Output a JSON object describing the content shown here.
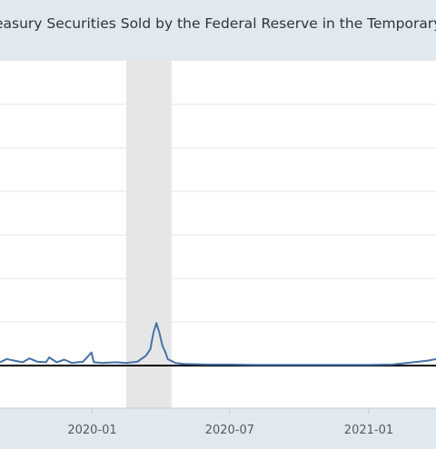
{
  "chart_data": {
    "type": "line",
    "title": "easury Securities Sold by the Federal Reserve in the Temporary",
    "x_tick_labels": [
      "2020-01",
      "2020-07",
      "2021-01"
    ],
    "x_range": [
      "2019-09-01",
      "2021-03-31"
    ],
    "y_range": [
      0,
      8
    ],
    "grid": true,
    "recession_band": [
      "2020-02-15",
      "2020-04-15"
    ],
    "series": [
      {
        "color": "#4572a7",
        "points": [
          [
            "2019-09-01",
            0.1
          ],
          [
            "2019-09-10",
            0.2
          ],
          [
            "2019-09-20",
            0.15
          ],
          [
            "2019-10-01",
            0.1
          ],
          [
            "2019-10-10",
            0.22
          ],
          [
            "2019-10-20",
            0.12
          ],
          [
            "2019-11-01",
            0.1
          ],
          [
            "2019-11-05",
            0.25
          ],
          [
            "2019-11-15",
            0.1
          ],
          [
            "2019-11-25",
            0.18
          ],
          [
            "2019-12-05",
            0.08
          ],
          [
            "2019-12-20",
            0.12
          ],
          [
            "2019-12-31",
            0.4
          ],
          [
            "2020-01-03",
            0.1
          ],
          [
            "2020-01-15",
            0.08
          ],
          [
            "2020-02-01",
            0.1
          ],
          [
            "2020-02-15",
            0.08
          ],
          [
            "2020-03-01",
            0.12
          ],
          [
            "2020-03-12",
            0.3
          ],
          [
            "2020-03-18",
            0.5
          ],
          [
            "2020-03-22",
            1.0
          ],
          [
            "2020-03-26",
            1.3
          ],
          [
            "2020-03-30",
            1.0
          ],
          [
            "2020-04-03",
            0.6
          ],
          [
            "2020-04-07",
            0.4
          ],
          [
            "2020-04-10",
            0.2
          ],
          [
            "2020-04-20",
            0.08
          ],
          [
            "2020-05-01",
            0.05
          ],
          [
            "2020-06-01",
            0.03
          ],
          [
            "2020-07-01",
            0.03
          ],
          [
            "2020-08-01",
            0.02
          ],
          [
            "2020-09-01",
            0.02
          ],
          [
            "2020-10-01",
            0.02
          ],
          [
            "2020-11-01",
            0.02
          ],
          [
            "2020-12-01",
            0.02
          ],
          [
            "2021-01-01",
            0.02
          ],
          [
            "2021-02-01",
            0.03
          ],
          [
            "2021-03-01",
            0.1
          ],
          [
            "2021-03-20",
            0.15
          ],
          [
            "2021-03-31",
            0.2
          ]
        ]
      }
    ]
  }
}
